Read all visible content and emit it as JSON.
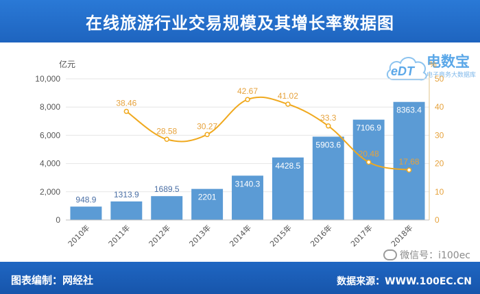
{
  "header": {
    "title": "在线旅游行业交易规模及其增长率数据图"
  },
  "footer": {
    "left": "图表编制：网经社",
    "right": "数据来源：WWW.100EC.CN"
  },
  "watermark": {
    "wechat": "微信号：i100ec",
    "logo_title": "电数宝",
    "logo_sub": "电子商务大数据库",
    "logo_cloud_text": "eDT"
  },
  "colors": {
    "bar": "#5b9bd5",
    "line": "#f0a91e",
    "header": "#1e64bf",
    "grid": "#e6e6e6"
  },
  "chart_data": {
    "type": "bar",
    "title": "在线旅游行业交易规模及其增长率数据图",
    "categories": [
      "2010年",
      "2011年",
      "2012年",
      "2013年",
      "2014年",
      "2015年",
      "2016年",
      "2017年",
      "2018年"
    ],
    "series": [
      {
        "values": [
          948.9,
          1313.9,
          1689.5,
          2201,
          3140.3,
          4428.5,
          5903.6,
          7106.9,
          8363.4
        ],
        "labels": [
          "948.9",
          "1313.9",
          "1689.5",
          "2201",
          "3140.3",
          "4428.5",
          "5903.6",
          "7106.9",
          "8363.4"
        ],
        "type": "bar",
        "axis": "left"
      },
      {
        "values": [
          null,
          38.46,
          28.58,
          30.27,
          42.67,
          41.02,
          33.3,
          20.48,
          17.68
        ],
        "labels": [
          "",
          "38.46",
          "28.58",
          "30.27",
          "42.67",
          "41.02",
          "33.3",
          "20.48",
          "17.68"
        ],
        "type": "line",
        "axis": "right"
      }
    ],
    "ylabel_left": "亿元",
    "ylabel_right": "%",
    "ylim_left": [
      0,
      10000
    ],
    "yticks_left": [
      "0",
      "2,000",
      "4,000",
      "6,000",
      "8,000",
      "10,000"
    ],
    "ylim_right": [
      0,
      50
    ],
    "yticks_right": [
      "0",
      "10",
      "20",
      "30",
      "40",
      "50"
    ],
    "grid": true
  }
}
